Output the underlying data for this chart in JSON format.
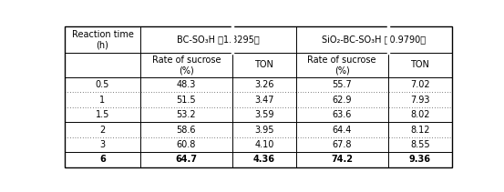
{
  "title_col0": "Reaction time\n(h)",
  "header_bc": "BC-SO₃H （1.8295）",
  "header_sio2": "SiO₂-BC-SO₃H （0.9790）",
  "subheader_rate": "Rate of sucrose\n(%)",
  "subheader_ton": "TON",
  "rows": [
    [
      "0.5",
      "48.3",
      "3.26",
      "55.7",
      "7.02"
    ],
    [
      "1",
      "51.5",
      "3.47",
      "62.9",
      "7.93"
    ],
    [
      "1.5",
      "53.2",
      "3.59",
      "63.6",
      "8.02"
    ],
    [
      "2",
      "58.6",
      "3.95",
      "64.4",
      "8.12"
    ],
    [
      "3",
      "60.8",
      "4.10",
      "67.8",
      "8.55"
    ],
    [
      "6",
      "64.7",
      "4.36",
      "74.2",
      "9.36"
    ]
  ],
  "bold_last_row": true,
  "bg_color": "#ffffff",
  "border_color": "#000000",
  "text_color": "#000000",
  "figsize": [
    5.53,
    2.11
  ],
  "dpi": 100
}
